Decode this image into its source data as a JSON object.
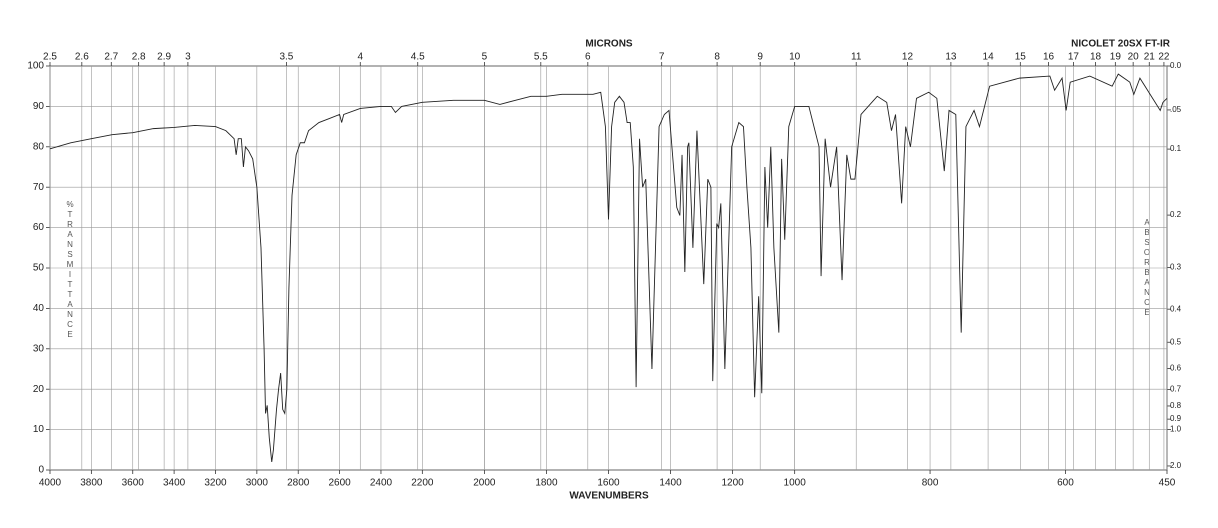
{
  "chart_data": {
    "type": "line",
    "top_axis_label": "MICRONS",
    "instrument": "NICOLET 20SX FT-IR",
    "xlabel": "WAVENUMBERS",
    "ylabel": "%TRANSMITTANCE",
    "y2label": "ABSORBANCE",
    "xlim": [
      4000,
      450
    ],
    "xscale_breaks": [
      2200,
      1000
    ],
    "xticks": [
      4000,
      3800,
      3600,
      3400,
      3200,
      3000,
      2800,
      2600,
      2400,
      2200,
      2000,
      1800,
      1600,
      1400,
      1200,
      1000,
      800,
      600,
      450
    ],
    "micron_ticks": [
      2.5,
      2.6,
      2.7,
      2.8,
      2.9,
      3,
      3.5,
      4,
      4.5,
      5,
      5.5,
      6,
      7,
      8,
      9,
      10,
      11,
      12,
      13,
      14,
      15,
      16,
      17,
      18,
      19,
      20,
      21,
      22
    ],
    "ylim": [
      0,
      100
    ],
    "yticks": [
      0,
      10,
      20,
      30,
      40,
      50,
      60,
      70,
      80,
      90,
      100
    ],
    "y2ticks": [
      {
        "value": 0,
        "label": "0.0"
      },
      {
        "value": 0.05,
        "label": ".05"
      },
      0.1,
      0.2,
      0.3,
      0.4,
      0.5,
      0.6,
      0.7,
      0.8,
      0.9,
      {
        "value": 1,
        "label": "1.0"
      },
      {
        "value": 2,
        "label": "2.0"
      }
    ],
    "grid": true,
    "color": "#222",
    "x": [
      4000,
      3900,
      3800,
      3700,
      3600,
      3500,
      3400,
      3300,
      3200,
      3150,
      3110,
      3100,
      3090,
      3075,
      3065,
      3055,
      3040,
      3020,
      3000,
      2980,
      2965,
      2958,
      2950,
      2940,
      2928,
      2920,
      2905,
      2895,
      2885,
      2875,
      2865,
      2855,
      2845,
      2830,
      2810,
      2790,
      2770,
      2750,
      2700,
      2650,
      2600,
      2590,
      2580,
      2500,
      2400,
      2350,
      2330,
      2300,
      2200,
      2100,
      2000,
      1950,
      1900,
      1850,
      1800,
      1750,
      1700,
      1650,
      1625,
      1610,
      1600,
      1590,
      1580,
      1565,
      1550,
      1540,
      1530,
      1520,
      1511,
      1500,
      1490,
      1480,
      1460,
      1437,
      1420,
      1405,
      1380,
      1370,
      1363,
      1354,
      1345,
      1341,
      1328,
      1315,
      1293,
      1280,
      1270,
      1264,
      1251,
      1245,
      1238,
      1225,
      1203,
      1180,
      1165,
      1154,
      1141,
      1129,
      1116,
      1106,
      1096,
      1087,
      1077,
      1067,
      1051,
      1042,
      1032,
      1019,
      1000,
      979,
      964,
      961,
      955,
      947,
      938,
      930,
      923,
      917,
      911,
      902,
      878,
      864,
      857,
      851,
      842,
      836,
      829,
      820,
      802,
      790,
      779,
      772,
      762,
      754,
      747,
      735,
      727,
      712,
      668,
      623,
      616,
      605,
      599,
      593,
      564,
      531,
      522,
      505,
      499,
      490,
      460,
      456,
      450
    ],
    "values": [
      79.5,
      81,
      82,
      83,
      83.5,
      84.5,
      84.8,
      85.3,
      85,
      84,
      82,
      78,
      82,
      82,
      75,
      80,
      79,
      77,
      70,
      55,
      30,
      14,
      16,
      8,
      2,
      5,
      15,
      20,
      24,
      15,
      14,
      20,
      45,
      68,
      78,
      81,
      81,
      84,
      86,
      87,
      88,
      86,
      88,
      89.5,
      90,
      90,
      88.5,
      90,
      91,
      91.5,
      91.5,
      90.5,
      91.5,
      92.5,
      92.5,
      93,
      93,
      93,
      93.5,
      85,
      62,
      85,
      91,
      92.5,
      91,
      86,
      86,
      75,
      20.5,
      82,
      70,
      72,
      25,
      85,
      88,
      89,
      65,
      63,
      78,
      49,
      80,
      81,
      55,
      84,
      46,
      72,
      70,
      22,
      61,
      60,
      66,
      25,
      80,
      86,
      85,
      70,
      55,
      18,
      43,
      19,
      75,
      60,
      80,
      55,
      34,
      77,
      57,
      85,
      90,
      90,
      80,
      48,
      82,
      70,
      80,
      47,
      78,
      72,
      72,
      88,
      92.5,
      91,
      84,
      88,
      66,
      85,
      80,
      92,
      93.5,
      92,
      74,
      89,
      88,
      34,
      85,
      89,
      85,
      95,
      97,
      97.5,
      94,
      97,
      89,
      96,
      97.5,
      95,
      98,
      96,
      93,
      97,
      89,
      91,
      92
    ]
  }
}
